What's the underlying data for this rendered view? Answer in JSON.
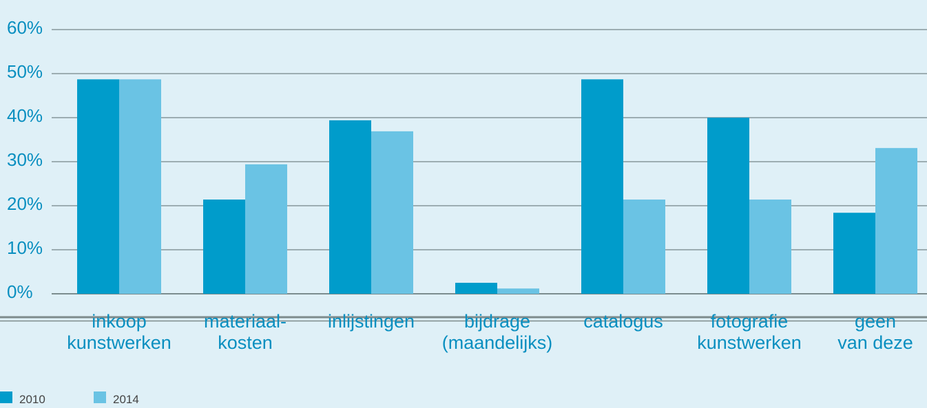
{
  "chart_data": {
    "type": "bar",
    "categories": [
      [
        "inkoop",
        "kunstwerken"
      ],
      [
        "materiaal-",
        "kosten"
      ],
      [
        "inlijstingen"
      ],
      [
        "bijdrage",
        "(maandelijks)"
      ],
      [
        "catalogus"
      ],
      [
        "fotografie",
        "kunstwerken"
      ],
      [
        "geen",
        "van deze"
      ]
    ],
    "series": [
      {
        "name": "2010",
        "color": "#009ccb",
        "values": [
          48.7,
          21.4,
          39.4,
          2.5,
          48.7,
          40,
          18.4
        ]
      },
      {
        "name": "2014",
        "color": "#6ac3e4",
        "values": [
          48.7,
          29.4,
          36.9,
          1.2,
          21.4,
          21.4,
          33.1
        ]
      }
    ],
    "ylim": [
      0,
      60
    ],
    "yticks": [
      {
        "value": 0,
        "label": "0%"
      },
      {
        "value": 10,
        "label": "10%"
      },
      {
        "value": 20,
        "label": "20%"
      },
      {
        "value": 30,
        "label": "30%"
      },
      {
        "value": 40,
        "label": "40%"
      },
      {
        "value": 50,
        "label": "50%"
      },
      {
        "value": 60,
        "label": "60%"
      }
    ],
    "grid": true,
    "legend": "bottom-left"
  }
}
